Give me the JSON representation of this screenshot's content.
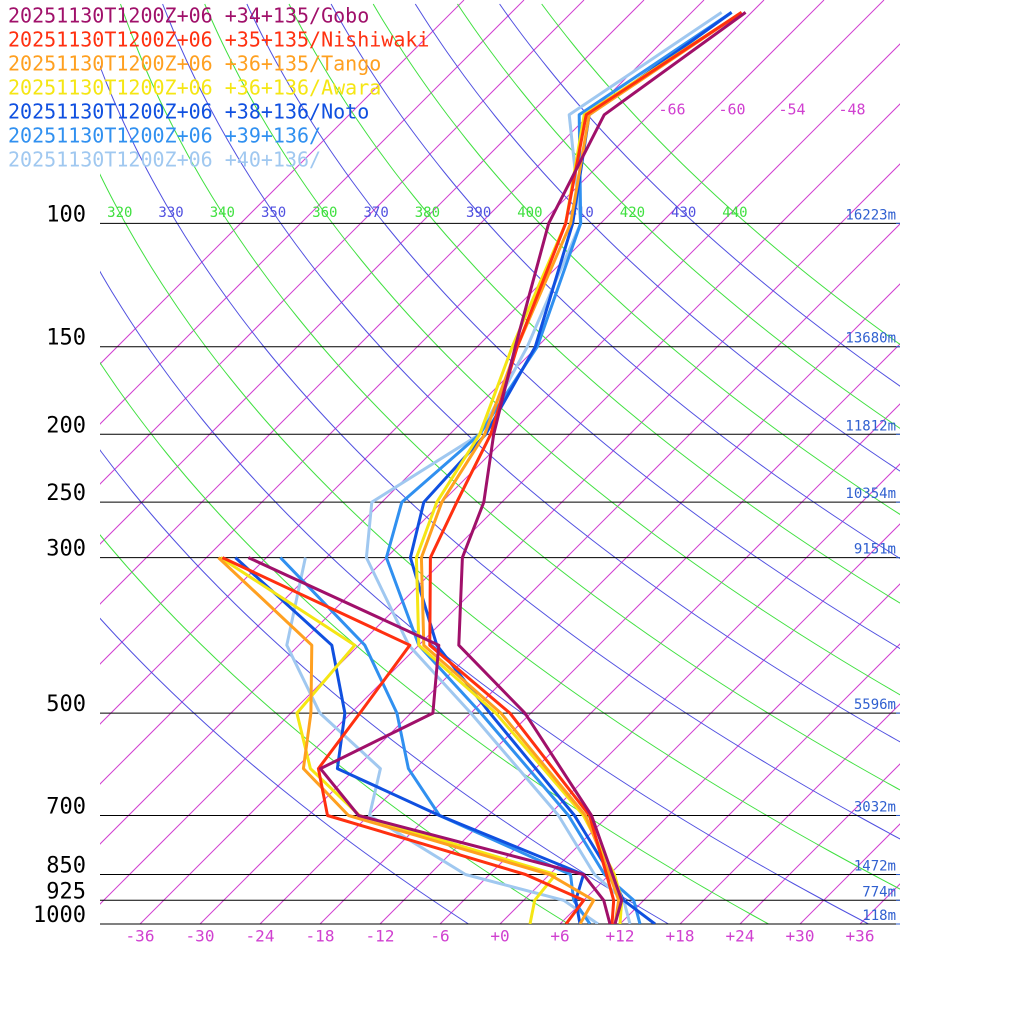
{
  "chart_data": {
    "type": "skewt",
    "pressures": [
      1000,
      925,
      850,
      700,
      500,
      400,
      300,
      250,
      200,
      150,
      100,
      70,
      50
    ],
    "dewpoint_pressures": [
      1000,
      925,
      850,
      700,
      600,
      500,
      400,
      300
    ],
    "series": [
      {
        "name": "20251130T1200Z+06 +34+135/Gobo",
        "color": "#a0106a",
        "temperature": [
          11.5,
          9.8,
          6.3,
          -1.7,
          -18.6,
          -32,
          -40.4,
          -43.8,
          -49.6,
          -56.2,
          -65.2,
          -70.5,
          -66.6
        ],
        "dewpoint": [
          11,
          8,
          3.4,
          -25,
          -33.5,
          -27.8,
          -34,
          -61.8
        ]
      },
      {
        "name": "20251130T1200Z+06 +35+135/Nishiwaki",
        "color": "#ff3010",
        "temperature": [
          11.2,
          9,
          5.7,
          -1.9,
          -20.1,
          -34.9,
          -43.6,
          -46.5,
          -49.9,
          -56,
          -63.5,
          -72.3,
          -67
        ],
        "dewpoint": [
          6.6,
          6,
          -2.4,
          -28.1,
          -33.7,
          -35.1,
          -36.9,
          -64.4
        ]
      },
      {
        "name": "20251130T1200Z+06 +36+135/Tango",
        "color": "#ffa020",
        "temperature": [
          11.5,
          9.5,
          6,
          -2.3,
          -21,
          -35.5,
          -44.5,
          -48,
          -50.5,
          -56,
          -63,
          -72,
          -67
        ],
        "dewpoint": [
          8,
          7,
          0,
          -26,
          -35.2,
          -40,
          -46.7,
          -64.8
        ]
      },
      {
        "name": "20251130T1200Z+06 +36+136/Awara",
        "color": "#f5e614",
        "temperature": [
          12,
          9.8,
          6.5,
          -2.5,
          -21.5,
          -36,
          -45,
          -48.5,
          -51,
          -56.5,
          -63.5,
          -72.5,
          -67
        ],
        "dewpoint": [
          3,
          1.1,
          0.6,
          -24.9,
          -34.5,
          -41.4,
          -42.4,
          -64.6
        ]
      },
      {
        "name": "20251130T1200Z+06 +38+136/Noto",
        "color": "#1050e0",
        "temperature": [
          15.5,
          10,
          6.1,
          -3.4,
          -22.1,
          -34.2,
          -45.6,
          -49.8,
          -50.4,
          -54.2,
          -62.8,
          -72,
          -68
        ],
        "dewpoint": [
          8,
          5.2,
          3.4,
          -16.9,
          -31.8,
          -36.6,
          -44.7,
          -63.1
        ]
      },
      {
        "name": "20251130T1200Z+06 +39+136/",
        "color": "#3090f0",
        "temperature": [
          14,
          11,
          5.5,
          -4,
          -23,
          -36,
          -48,
          -52,
          -51,
          -54,
          -62,
          -73,
          -68
        ],
        "dewpoint": [
          9,
          5,
          2.1,
          -16.9,
          -24.7,
          -31.4,
          -41.4,
          -58.6
        ]
      },
      {
        "name": "20251130T1200Z+06 +40+136/",
        "color": "#a0c8f0",
        "temperature": [
          13,
          10,
          4.5,
          -5,
          -24,
          -37,
          -50,
          -55,
          -51,
          -55,
          -62,
          -74,
          -69
        ],
        "dewpoint": [
          9.8,
          4,
          -8.4,
          -23.9,
          -27.5,
          -39.1,
          -49.2,
          -56.1
        ]
      }
    ],
    "xlim": [
      -40,
      40
    ],
    "ylim": [
      1000,
      48
    ],
    "xticks": [
      -36,
      -30,
      -24,
      -18,
      -12,
      -6,
      {
        "value": 0,
        "label": "+0"
      },
      {
        "value": 6,
        "label": "+6"
      },
      {
        "value": 12,
        "label": "+12"
      },
      {
        "value": 18,
        "label": "+18"
      },
      {
        "value": 24,
        "label": "+24"
      },
      {
        "value": 30,
        "label": "+30"
      },
      {
        "value": 36,
        "label": "+36"
      }
    ],
    "yticks": [
      1000,
      925,
      850,
      700,
      500,
      300,
      250,
      200,
      150,
      100
    ],
    "heights": {
      "values": [
        118,
        774,
        1472,
        3032,
        5596,
        9151,
        10354,
        11812,
        13680,
        16223
      ],
      "value_labels": [
        "118m",
        "774m",
        "1472m",
        "3032m",
        "5596m",
        "9151m",
        "10354m",
        "11812m",
        "13680m",
        "16223m"
      ]
    },
    "isotherm_labels": [
      -66,
      -60,
      -54,
      -48
    ],
    "isotherms": [
      -96,
      -90,
      -84,
      -78,
      -72,
      -66,
      -60,
      -54,
      -48,
      -42,
      -36,
      -30,
      -24,
      -18,
      -12,
      -6,
      0,
      6,
      12,
      18,
      24,
      30,
      36
    ],
    "dry_adiabats": [
      270,
      280,
      290,
      300,
      310,
      320,
      330,
      340,
      350,
      360,
      370,
      380,
      390,
      400,
      410,
      420,
      430,
      440
    ]
  }
}
